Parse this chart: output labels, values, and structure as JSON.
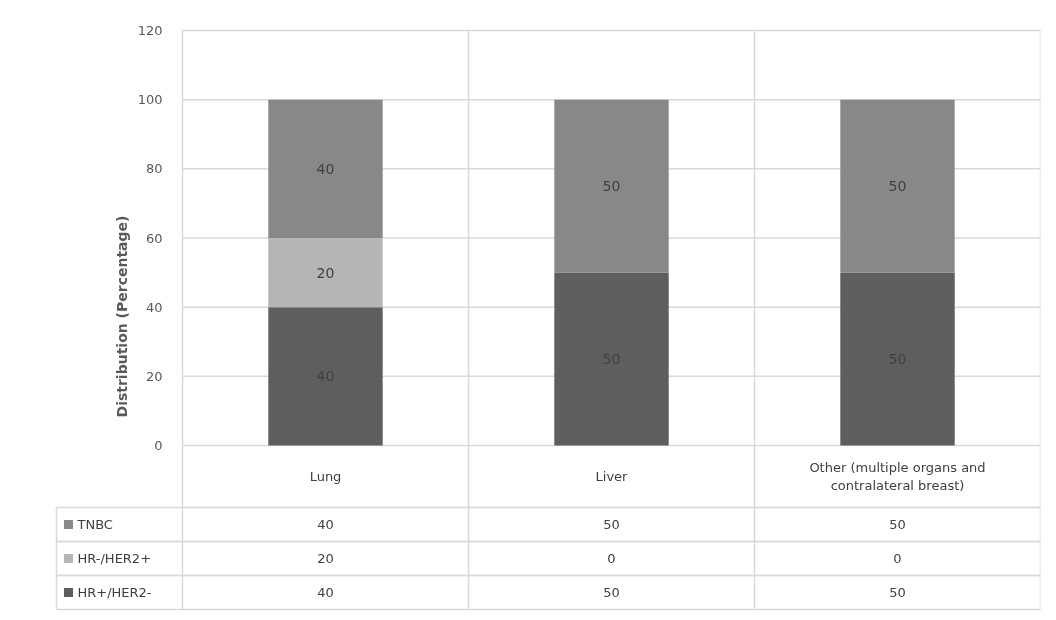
{
  "chart_data": {
    "type": "bar",
    "stacked": true,
    "ylabel": "Distribution (Percentage)",
    "categories": [
      "Lung",
      "Liver",
      "Other (multiple organs and contralateral breast)"
    ],
    "series": [
      {
        "name": "HR+/HER2-",
        "color": "#5e5e5e",
        "values": [
          40,
          50,
          50
        ],
        "value_labels": [
          "40",
          "50",
          "50"
        ]
      },
      {
        "name": "HR-/HER2+",
        "color": "#b5b5b5",
        "values": [
          20,
          0,
          0
        ],
        "value_labels": [
          "20",
          "0",
          "0"
        ]
      },
      {
        "name": "TNBC",
        "color": "#888888",
        "values": [
          40,
          50,
          50
        ],
        "value_labels": [
          "40",
          "50",
          "50"
        ]
      }
    ],
    "ylim": [
      0,
      120
    ],
    "yticks": [
      0,
      20,
      40,
      60,
      80,
      100,
      120
    ],
    "grid": true,
    "data_labels": true,
    "legend": "bottom"
  }
}
